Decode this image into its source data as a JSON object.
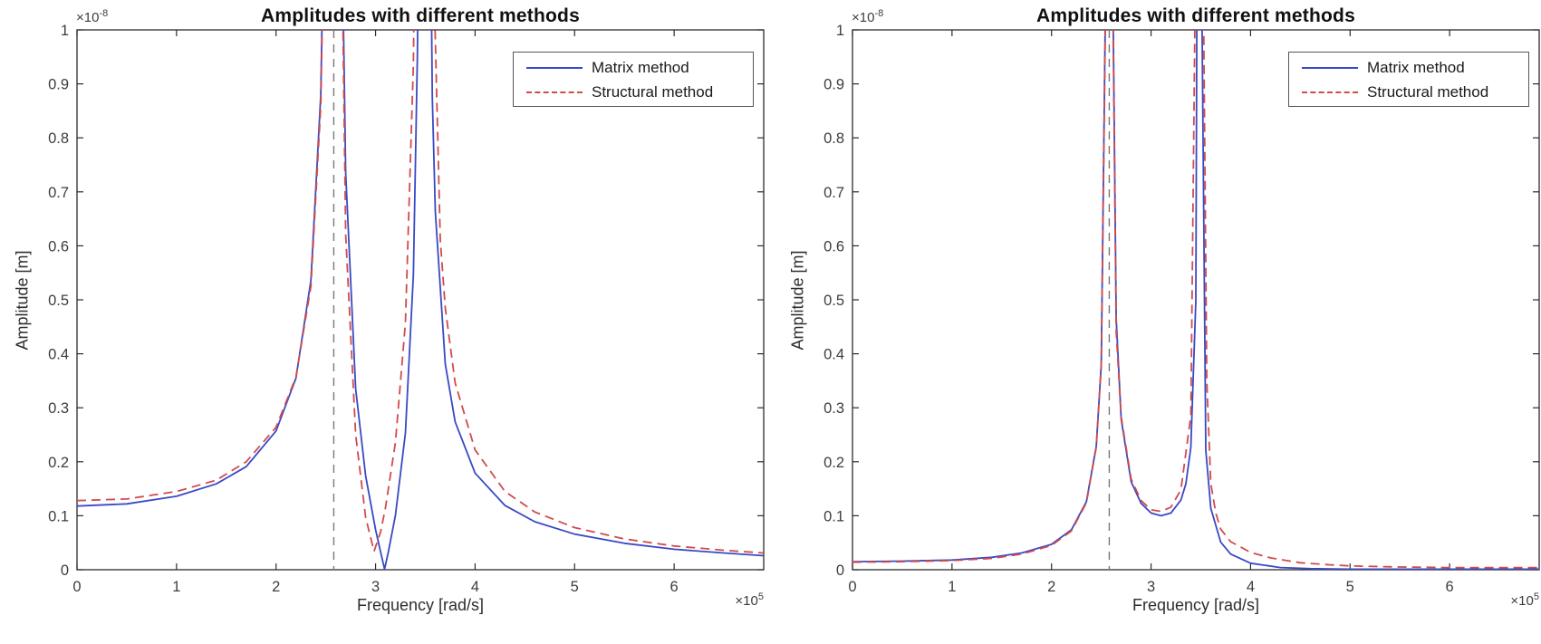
{
  "figure": {
    "background": "#ffffff",
    "axis_color": "#2b2b2b",
    "tick_label_color": "#3d3d3d",
    "vline_color": "#787878",
    "legend_border_color": "#555555"
  },
  "chart_data": [
    {
      "type": "line",
      "title": "Amplitudes with different methods",
      "xlabel": "Frequency [rad/s]",
      "ylabel": "Amplitude [m]",
      "x_scale_prefix": "×10",
      "x_scale_exp": "5",
      "y_scale_prefix": "×10",
      "y_scale_exp": "-8",
      "xlim": [
        0,
        6.9
      ],
      "ylim": [
        0,
        1
      ],
      "x_ticks": [
        0,
        1,
        2,
        3,
        4,
        5,
        6
      ],
      "x_tick_labels": [
        "0",
        "1",
        "2",
        "3",
        "4",
        "5",
        "6"
      ],
      "y_ticks": [
        0,
        0.1,
        0.2,
        0.3,
        0.4,
        0.5,
        0.6,
        0.7,
        0.8,
        0.9,
        1
      ],
      "y_tick_labels": [
        "0",
        "0.1",
        "0.2",
        "0.3",
        "0.4",
        "0.5",
        "0.6",
        "0.7",
        "0.8",
        "0.9",
        "1"
      ],
      "grid": false,
      "legend_position": "top-right",
      "vline_x": 2.58,
      "resonances_x": [
        2.58,
        3.48
      ],
      "antiresonance_x": 3.09,
      "series": [
        {
          "name": "Matrix method",
          "color": "#3a49c4",
          "style": "solid",
          "points": [
            [
              0,
              0.118
            ],
            [
              0.5,
              0.122
            ],
            [
              1,
              0.136
            ],
            [
              1.4,
              0.159
            ],
            [
              1.7,
              0.191
            ],
            [
              2,
              0.257
            ],
            [
              2.2,
              0.355
            ],
            [
              2.35,
              0.536
            ],
            [
              2.45,
              0.88
            ],
            [
              2.47,
              1.1
            ],
            [
              2.67,
              1.1
            ],
            [
              2.7,
              0.734
            ],
            [
              2.8,
              0.335
            ],
            [
              2.9,
              0.174
            ],
            [
              3,
              0.074
            ],
            [
              3.05,
              0.033
            ],
            [
              3.09,
              0.001
            ],
            [
              3.13,
              0.034
            ],
            [
              3.2,
              0.101
            ],
            [
              3.3,
              0.253
            ],
            [
              3.38,
              0.546
            ],
            [
              3.42,
              0.95
            ],
            [
              3.428,
              1.1
            ],
            [
              3.558,
              1.1
            ],
            [
              3.57,
              0.875
            ],
            [
              3.6,
              0.664
            ],
            [
              3.7,
              0.381
            ],
            [
              3.8,
              0.274
            ],
            [
              4,
              0.179
            ],
            [
              4.3,
              0.119
            ],
            [
              4.6,
              0.089
            ],
            [
              5,
              0.066
            ],
            [
              5.5,
              0.049
            ],
            [
              6,
              0.038
            ],
            [
              6.5,
              0.031
            ],
            [
              6.9,
              0.026
            ]
          ]
        },
        {
          "name": "Structural method",
          "color": "#d14b4b",
          "style": "dashed",
          "points": [
            [
              0,
              0.128
            ],
            [
              0.5,
              0.131
            ],
            [
              1,
              0.145
            ],
            [
              1.4,
              0.166
            ],
            [
              1.7,
              0.2
            ],
            [
              2,
              0.264
            ],
            [
              2.2,
              0.357
            ],
            [
              2.35,
              0.525
            ],
            [
              2.45,
              0.86
            ],
            [
              2.473,
              1.1
            ],
            [
              2.665,
              1.1
            ],
            [
              2.7,
              0.62
            ],
            [
              2.8,
              0.25
            ],
            [
              2.9,
              0.097
            ],
            [
              2.985,
              0.034
            ],
            [
              3.05,
              0.07
            ],
            [
              3.1,
              0.116
            ],
            [
              3.2,
              0.236
            ],
            [
              3.3,
              0.457
            ],
            [
              3.38,
              0.936
            ],
            [
              3.39,
              1.1
            ],
            [
              3.585,
              1.1
            ],
            [
              3.65,
              0.611
            ],
            [
              3.7,
              0.485
            ],
            [
              3.8,
              0.346
            ],
            [
              4,
              0.222
            ],
            [
              4.3,
              0.145
            ],
            [
              4.6,
              0.107
            ],
            [
              5,
              0.078
            ],
            [
              5.5,
              0.057
            ],
            [
              6,
              0.044
            ],
            [
              6.5,
              0.036
            ],
            [
              6.9,
              0.031
            ]
          ]
        }
      ]
    },
    {
      "type": "line",
      "title": "Amplitudes with different methods",
      "xlabel": "Frequency [rad/s]",
      "ylabel": "Amplitude [m]",
      "x_scale_prefix": "×10",
      "x_scale_exp": "5",
      "y_scale_prefix": "×10",
      "y_scale_exp": "-8",
      "xlim": [
        0,
        6.9
      ],
      "ylim": [
        0,
        1
      ],
      "x_ticks": [
        0,
        1,
        2,
        3,
        4,
        5,
        6
      ],
      "x_tick_labels": [
        "0",
        "1",
        "2",
        "3",
        "4",
        "5",
        "6"
      ],
      "y_ticks": [
        0,
        0.1,
        0.2,
        0.3,
        0.4,
        0.5,
        0.6,
        0.7,
        0.8,
        0.9,
        1
      ],
      "y_tick_labels": [
        "0",
        "0.1",
        "0.2",
        "0.3",
        "0.4",
        "0.5",
        "0.6",
        "0.7",
        "0.8",
        "0.9",
        "1"
      ],
      "grid": false,
      "legend_position": "top-right",
      "vline_x": 2.58,
      "resonances_x": [
        2.58,
        3.48
      ],
      "valley_y": 0.1,
      "series": [
        {
          "name": "Matrix method",
          "color": "#3a49c4",
          "style": "solid",
          "points": [
            [
              0,
              0.015
            ],
            [
              0.5,
              0.016
            ],
            [
              1,
              0.018
            ],
            [
              1.4,
              0.023
            ],
            [
              1.7,
              0.031
            ],
            [
              2,
              0.047
            ],
            [
              2.2,
              0.074
            ],
            [
              2.35,
              0.126
            ],
            [
              2.45,
              0.229
            ],
            [
              2.5,
              0.38
            ],
            [
              2.545,
              1.1
            ],
            [
              2.615,
              1.1
            ],
            [
              2.65,
              0.465
            ],
            [
              2.7,
              0.279
            ],
            [
              2.8,
              0.163
            ],
            [
              2.9,
              0.123
            ],
            [
              3,
              0.105
            ],
            [
              3.1,
              0.1
            ],
            [
              3.2,
              0.105
            ],
            [
              3.3,
              0.129
            ],
            [
              3.35,
              0.159
            ],
            [
              3.4,
              0.227
            ],
            [
              3.45,
              0.499
            ],
            [
              3.462,
              1.1
            ],
            [
              3.508,
              1.1
            ],
            [
              3.55,
              0.221
            ],
            [
              3.6,
              0.114
            ],
            [
              3.7,
              0.051
            ],
            [
              3.8,
              0.029
            ],
            [
              4,
              0.012
            ],
            [
              4.3,
              0.004
            ],
            [
              4.6,
              0.002
            ],
            [
              5,
              0.001
            ],
            [
              5.5,
              0.001
            ],
            [
              6,
              0.001
            ],
            [
              6.5,
              0.001
            ],
            [
              6.9,
              0.001
            ]
          ]
        },
        {
          "name": "Structural method",
          "color": "#d14b4b",
          "style": "dashed",
          "points": [
            [
              0,
              0.014
            ],
            [
              0.5,
              0.015
            ],
            [
              1,
              0.017
            ],
            [
              1.4,
              0.021
            ],
            [
              1.7,
              0.029
            ],
            [
              2,
              0.045
            ],
            [
              2.2,
              0.072
            ],
            [
              2.35,
              0.124
            ],
            [
              2.45,
              0.227
            ],
            [
              2.5,
              0.378
            ],
            [
              2.547,
              1.1
            ],
            [
              2.613,
              1.1
            ],
            [
              2.65,
              0.44
            ],
            [
              2.7,
              0.283
            ],
            [
              2.8,
              0.168
            ],
            [
              2.9,
              0.128
            ],
            [
              3,
              0.111
            ],
            [
              3.1,
              0.108
            ],
            [
              3.2,
              0.116
            ],
            [
              3.3,
              0.148
            ],
            [
              3.4,
              0.285
            ],
            [
              3.445,
              1.1
            ],
            [
              3.525,
              1.1
            ],
            [
              3.56,
              0.35
            ],
            [
              3.6,
              0.16
            ],
            [
              3.65,
              0.105
            ],
            [
              3.7,
              0.075
            ],
            [
              3.8,
              0.052
            ],
            [
              4,
              0.032
            ],
            [
              4.2,
              0.022
            ],
            [
              4.5,
              0.013
            ],
            [
              4.8,
              0.009
            ],
            [
              5,
              0.007
            ],
            [
              5.5,
              0.005
            ],
            [
              6,
              0.004
            ],
            [
              6.5,
              0.004
            ],
            [
              6.9,
              0.004
            ]
          ]
        }
      ]
    }
  ]
}
